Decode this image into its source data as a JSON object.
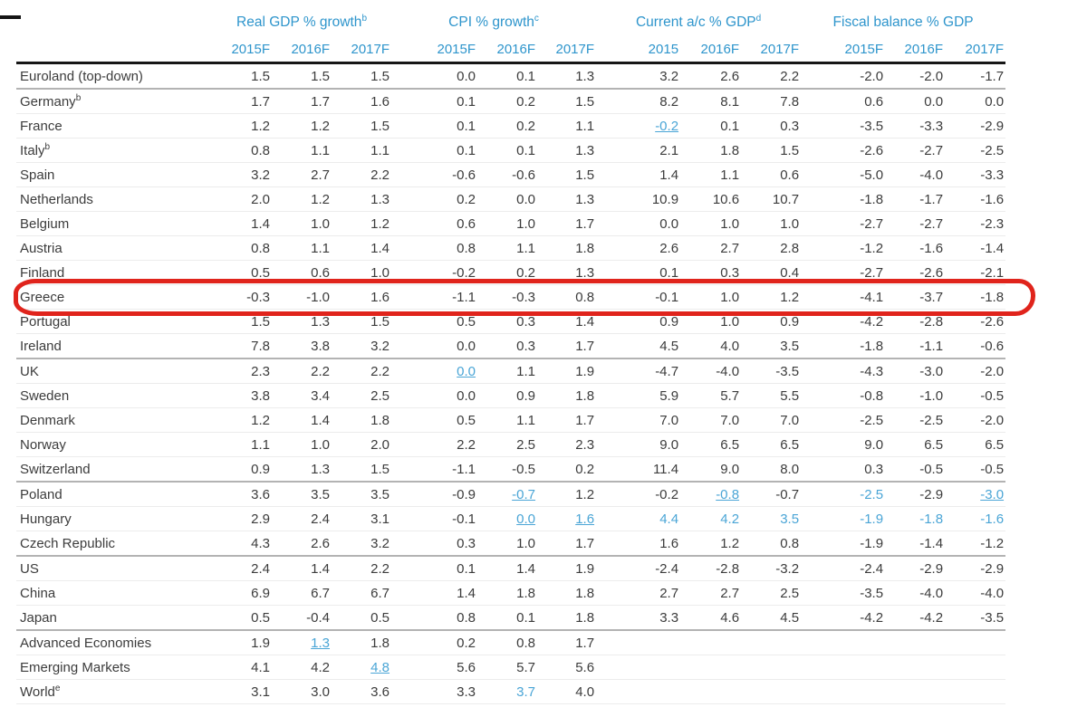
{
  "colors": {
    "header_blue": "#2e95cc",
    "link_blue": "#4aa5d6",
    "body_text": "#3c3c3c",
    "annotation_red": "#e0241c"
  },
  "annotation": {
    "type": "hand-drawn-red-box",
    "highlighted_row": "Greece"
  },
  "table": {
    "groups": [
      {
        "label": "Real GDP % growth",
        "sup": "b",
        "years": [
          "2015F",
          "2016F",
          "2017F"
        ]
      },
      {
        "label": "CPI % growth",
        "sup": "c",
        "years": [
          "2015F",
          "2016F",
          "2017F"
        ]
      },
      {
        "label": "Current a/c % GDP",
        "sup": "d",
        "years": [
          "2015",
          "2016F",
          "2017F"
        ]
      },
      {
        "label": "Fiscal balance % GDP",
        "sup": "",
        "years": [
          "2015F",
          "2016F",
          "2017F"
        ]
      }
    ],
    "rows": [
      {
        "country": "Euroland (top-down)",
        "sup": "",
        "values": [
          "1.5",
          "1.5",
          "1.5",
          "0.0",
          "0.1",
          "1.3",
          "3.2",
          "2.6",
          "2.2",
          "-2.0",
          "-2.0",
          "-1.7"
        ]
      },
      {
        "country": "Germany",
        "sup": "b",
        "sep": true,
        "values": [
          "1.7",
          "1.7",
          "1.6",
          "0.1",
          "0.2",
          "1.5",
          "8.2",
          "8.1",
          "7.8",
          "0.6",
          "0.0",
          "0.0"
        ]
      },
      {
        "country": "France",
        "sup": "",
        "values": [
          "1.2",
          "1.2",
          "1.5",
          "0.1",
          "0.2",
          "1.1",
          "-0.2",
          "0.1",
          "0.3",
          "-3.5",
          "-3.3",
          "-2.9"
        ],
        "styles": [
          "",
          "",
          "",
          "",
          "",
          "",
          "bu",
          "",
          "",
          "",
          "",
          ""
        ]
      },
      {
        "country": "Italy",
        "sup": "b",
        "values": [
          "0.8",
          "1.1",
          "1.1",
          "0.1",
          "0.1",
          "1.3",
          "2.1",
          "1.8",
          "1.5",
          "-2.6",
          "-2.7",
          "-2.5"
        ]
      },
      {
        "country": "Spain",
        "sup": "",
        "values": [
          "3.2",
          "2.7",
          "2.2",
          "-0.6",
          "-0.6",
          "1.5",
          "1.4",
          "1.1",
          "0.6",
          "-5.0",
          "-4.0",
          "-3.3"
        ]
      },
      {
        "country": "Netherlands",
        "sup": "",
        "values": [
          "2.0",
          "1.2",
          "1.3",
          "0.2",
          "0.0",
          "1.3",
          "10.9",
          "10.6",
          "10.7",
          "-1.8",
          "-1.7",
          "-1.6"
        ]
      },
      {
        "country": "Belgium",
        "sup": "",
        "values": [
          "1.4",
          "1.0",
          "1.2",
          "0.6",
          "1.0",
          "1.7",
          "0.0",
          "1.0",
          "1.0",
          "-2.7",
          "-2.7",
          "-2.3"
        ]
      },
      {
        "country": "Austria",
        "sup": "",
        "values": [
          "0.8",
          "1.1",
          "1.4",
          "0.8",
          "1.1",
          "1.8",
          "2.6",
          "2.7",
          "2.8",
          "-1.2",
          "-1.6",
          "-1.4"
        ]
      },
      {
        "country": "Finland",
        "sup": "",
        "values": [
          "0.5",
          "0.6",
          "1.0",
          "-0.2",
          "0.2",
          "1.3",
          "0.1",
          "0.3",
          "0.4",
          "-2.7",
          "-2.6",
          "-2.1"
        ]
      },
      {
        "country": "Greece",
        "sup": "",
        "highlighted": true,
        "values": [
          "-0.3",
          "-1.0",
          "1.6",
          "-1.1",
          "-0.3",
          "0.8",
          "-0.1",
          "1.0",
          "1.2",
          "-4.1",
          "-3.7",
          "-1.8"
        ]
      },
      {
        "country": "Portugal",
        "sup": "",
        "values": [
          "1.5",
          "1.3",
          "1.5",
          "0.5",
          "0.3",
          "1.4",
          "0.9",
          "1.0",
          "0.9",
          "-4.2",
          "-2.8",
          "-2.6"
        ]
      },
      {
        "country": "Ireland",
        "sup": "",
        "values": [
          "7.8",
          "3.8",
          "3.2",
          "0.0",
          "0.3",
          "1.7",
          "4.5",
          "4.0",
          "3.5",
          "-1.8",
          "-1.1",
          "-0.6"
        ]
      },
      {
        "country": "UK",
        "sup": "",
        "sep": true,
        "values": [
          "2.3",
          "2.2",
          "2.2",
          "0.0",
          "1.1",
          "1.9",
          "-4.7",
          "-4.0",
          "-3.5",
          "-4.3",
          "-3.0",
          "-2.0"
        ],
        "styles": [
          "",
          "",
          "",
          "bu",
          "",
          "",
          "",
          "",
          "",
          "",
          "",
          ""
        ]
      },
      {
        "country": "Sweden",
        "sup": "",
        "values": [
          "3.8",
          "3.4",
          "2.5",
          "0.0",
          "0.9",
          "1.8",
          "5.9",
          "5.7",
          "5.5",
          "-0.8",
          "-1.0",
          "-0.5"
        ]
      },
      {
        "country": "Denmark",
        "sup": "",
        "values": [
          "1.2",
          "1.4",
          "1.8",
          "0.5",
          "1.1",
          "1.7",
          "7.0",
          "7.0",
          "7.0",
          "-2.5",
          "-2.5",
          "-2.0"
        ]
      },
      {
        "country": "Norway",
        "sup": "",
        "values": [
          "1.1",
          "1.0",
          "2.0",
          "2.2",
          "2.5",
          "2.3",
          "9.0",
          "6.5",
          "6.5",
          "9.0",
          "6.5",
          "6.5"
        ]
      },
      {
        "country": "Switzerland",
        "sup": "",
        "values": [
          "0.9",
          "1.3",
          "1.5",
          "-1.1",
          "-0.5",
          "0.2",
          "11.4",
          "9.0",
          "8.0",
          "0.3",
          "-0.5",
          "-0.5"
        ]
      },
      {
        "country": "Poland",
        "sup": "",
        "sep": true,
        "values": [
          "3.6",
          "3.5",
          "3.5",
          "-0.9",
          "-0.7",
          "1.2",
          "-0.2",
          "-0.8",
          "-0.7",
          "-2.5",
          "-2.9",
          "-3.0"
        ],
        "styles": [
          "",
          "",
          "",
          "",
          "bu",
          "",
          "",
          "bu",
          "",
          "b",
          "",
          "bu"
        ]
      },
      {
        "country": "Hungary",
        "sup": "",
        "values": [
          "2.9",
          "2.4",
          "3.1",
          "-0.1",
          "0.0",
          "1.6",
          "4.4",
          "4.2",
          "3.5",
          "-1.9",
          "-1.8",
          "-1.6"
        ],
        "styles": [
          "",
          "",
          "",
          "",
          "bu",
          "bu",
          "b",
          "b",
          "b",
          "b",
          "b",
          "b"
        ]
      },
      {
        "country": "Czech Republic",
        "sup": "",
        "values": [
          "4.3",
          "2.6",
          "3.2",
          "0.3",
          "1.0",
          "1.7",
          "1.6",
          "1.2",
          "0.8",
          "-1.9",
          "-1.4",
          "-1.2"
        ]
      },
      {
        "country": "US",
        "sup": "",
        "sep": true,
        "values": [
          "2.4",
          "1.4",
          "2.2",
          "0.1",
          "1.4",
          "1.9",
          "-2.4",
          "-2.8",
          "-3.2",
          "-2.4",
          "-2.9",
          "-2.9"
        ]
      },
      {
        "country": "China",
        "sup": "",
        "values": [
          "6.9",
          "6.7",
          "6.7",
          "1.4",
          "1.8",
          "1.8",
          "2.7",
          "2.7",
          "2.5",
          "-3.5",
          "-4.0",
          "-4.0"
        ]
      },
      {
        "country": "Japan",
        "sup": "",
        "values": [
          "0.5",
          "-0.4",
          "0.5",
          "0.8",
          "0.1",
          "1.8",
          "3.3",
          "4.6",
          "4.5",
          "-4.2",
          "-4.2",
          "-3.5"
        ]
      },
      {
        "country": "Advanced Economies",
        "sup": "",
        "sep": true,
        "values": [
          "1.9",
          "1.3",
          "1.8",
          "0.2",
          "0.8",
          "1.7",
          "",
          "",
          "",
          "",
          "",
          ""
        ],
        "styles": [
          "",
          "bu",
          "",
          "",
          "",
          "",
          "",
          "",
          "",
          "",
          "",
          ""
        ]
      },
      {
        "country": "Emerging Markets",
        "sup": "",
        "values": [
          "4.1",
          "4.2",
          "4.8",
          "5.6",
          "5.7",
          "5.6",
          "",
          "",
          "",
          "",
          "",
          ""
        ],
        "styles": [
          "",
          "",
          "bu",
          "",
          "",
          "",
          "",
          "",
          "",
          "",
          "",
          ""
        ]
      },
      {
        "country": "World",
        "sup": "e",
        "values": [
          "3.1",
          "3.0",
          "3.6",
          "3.3",
          "3.7",
          "4.0",
          "",
          "",
          "",
          "",
          "",
          ""
        ],
        "styles": [
          "",
          "",
          "",
          "",
          "b",
          "",
          "",
          "",
          "",
          "",
          "",
          ""
        ]
      }
    ]
  }
}
